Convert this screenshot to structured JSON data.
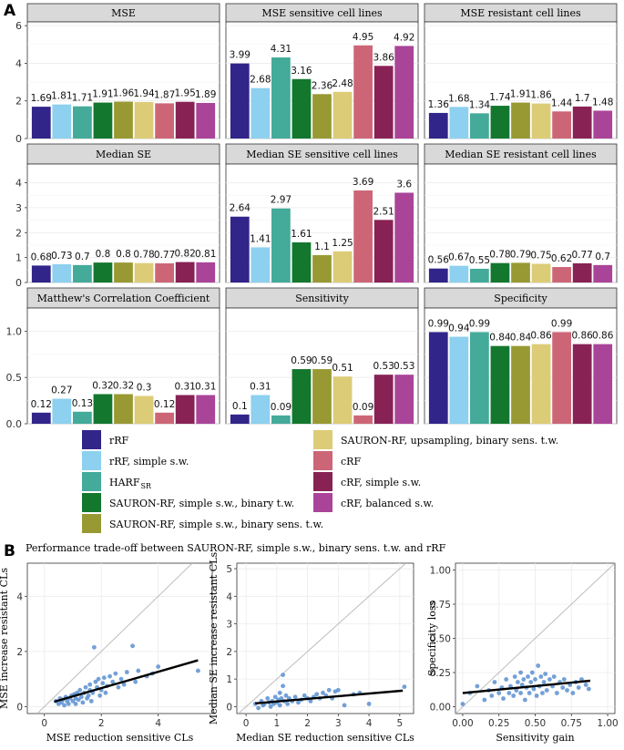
{
  "panel_a_label": "A",
  "panel_b_label": "B",
  "colors": [
    "#31258a",
    "#8dd0ef",
    "#44aa99",
    "#13772e",
    "#999934",
    "#ddcc77",
    "#cc6677",
    "#882255",
    "#aa4499"
  ],
  "legend": {
    "items": [
      "rRF",
      "rRF, simple s.w.",
      "HARF",
      "SAURON-RF, simple s.w., binary t.w.",
      "SAURON-RF, simple s.w., binary sens. t.w.",
      "SAURON-RF, upsampling, binary sens. t.w.",
      "cRF",
      "cRF, simple s.w.",
      "cRF, balanced s.w."
    ],
    "harf_subscript": "SR"
  },
  "chart_data": [
    {
      "type": "bar",
      "title": "MSE",
      "values": [
        1.69,
        1.81,
        1.71,
        1.91,
        1.96,
        1.94,
        1.87,
        1.95,
        1.89
      ],
      "labels": [
        "1.69",
        "1.81",
        "1.71",
        "1.91",
        "1.96",
        "1.94",
        "1.87",
        "1.95",
        "1.89"
      ],
      "ylim": [
        0,
        6.2
      ],
      "yticks": [
        0,
        2,
        4,
        6
      ],
      "ytick_labels": [
        "0",
        "2",
        "4",
        "6"
      ]
    },
    {
      "type": "bar",
      "title": "MSE sensitive cell lines",
      "values": [
        3.99,
        2.68,
        4.31,
        3.16,
        2.36,
        2.48,
        4.95,
        3.86,
        4.92
      ],
      "labels": [
        "3.99",
        "2.68",
        "4.31",
        "3.16",
        "2.36",
        "2.48",
        "4.95",
        "3.86",
        "4.92"
      ],
      "ylim": [
        0,
        6.2
      ]
    },
    {
      "type": "bar",
      "title": "MSE resistant cell lines",
      "values": [
        1.36,
        1.68,
        1.34,
        1.74,
        1.91,
        1.86,
        1.44,
        1.7,
        1.48
      ],
      "labels": [
        "1.36",
        "1.68",
        "1.34",
        "1.74",
        "1.91",
        "1.86",
        "1.44",
        "1.7",
        "1.48"
      ],
      "ylim": [
        0,
        6.2
      ]
    },
    {
      "type": "bar",
      "title": "Median SE",
      "values": [
        0.68,
        0.73,
        0.7,
        0.8,
        0.8,
        0.78,
        0.77,
        0.82,
        0.81
      ],
      "labels": [
        "0.68",
        "0.73",
        "0.7",
        "0.8",
        "0.8",
        "0.78",
        "0.77",
        "0.82",
        "0.81"
      ],
      "ylim": [
        0,
        4.75
      ],
      "yticks": [
        0,
        1,
        2,
        3,
        4
      ],
      "ytick_labels": [
        "0",
        "1",
        "2",
        "3",
        "4"
      ]
    },
    {
      "type": "bar",
      "title": "Median SE sensitive cell lines",
      "values": [
        2.64,
        1.41,
        2.97,
        1.61,
        1.1,
        1.25,
        3.69,
        2.51,
        3.6
      ],
      "labels": [
        "2.64",
        "1.41",
        "2.97",
        "1.61",
        "1.1",
        "1.25",
        "3.69",
        "2.51",
        "3.6"
      ],
      "ylim": [
        0,
        4.75
      ]
    },
    {
      "type": "bar",
      "title": "Median SE resistant cell lines",
      "values": [
        0.56,
        0.67,
        0.55,
        0.78,
        0.79,
        0.75,
        0.62,
        0.77,
        0.7
      ],
      "labels": [
        "0.56",
        "0.67",
        "0.55",
        "0.78",
        "0.79",
        "0.75",
        "0.62",
        "0.77",
        "0.7"
      ],
      "ylim": [
        0,
        4.75
      ]
    },
    {
      "type": "bar",
      "title": "Matthew's Correlation Coefficient",
      "values": [
        0.12,
        0.27,
        0.13,
        0.32,
        0.32,
        0.3,
        0.12,
        0.31,
        0.31
      ],
      "labels": [
        "0.12",
        "0.27",
        "0.13",
        "0.32",
        "0.32",
        "0.3",
        "0.12",
        "0.31",
        "0.31"
      ],
      "ylim": [
        0,
        1.25
      ],
      "yticks": [
        0,
        0.5,
        1.0
      ],
      "ytick_labels": [
        "0.0",
        "0.5",
        "1.0"
      ]
    },
    {
      "type": "bar",
      "title": "Sensitivity",
      "values": [
        0.1,
        0.31,
        0.09,
        0.59,
        0.59,
        0.51,
        0.09,
        0.53,
        0.53
      ],
      "labels": [
        "0.1",
        "0.31",
        "0.09",
        "0.59",
        "0.59",
        "0.51",
        "0.09",
        "0.53",
        "0.53"
      ],
      "ylim": [
        0,
        1.25
      ]
    },
    {
      "type": "bar",
      "title": "Specificity",
      "values": [
        0.99,
        0.94,
        0.99,
        0.84,
        0.84,
        0.86,
        0.99,
        0.86,
        0.86
      ],
      "labels": [
        "0.99",
        "0.94",
        "0.99",
        "0.84",
        "0.84",
        "0.86",
        "0.99",
        "0.86",
        "0.86"
      ],
      "ylim": [
        0,
        1.25
      ]
    },
    {
      "type": "scatter",
      "title": "Performance trade-off between SAURON-RF, simple s.w., binary sens. t.w. and rRF",
      "xlabel": "MSE reduction sensitive CLs",
      "ylabel": "MSE increase resistant CLs",
      "xlim": [
        -0.6,
        5.9
      ],
      "ylim": [
        -0.25,
        5.2
      ],
      "xticks": [
        0,
        2,
        4
      ],
      "yticks": [
        0,
        2,
        4
      ],
      "fit": [
        [
          0.35,
          0.18
        ],
        [
          5.4,
          1.68
        ]
      ],
      "points": [
        [
          0.4,
          0.2
        ],
        [
          0.5,
          0.1
        ],
        [
          0.55,
          0.3
        ],
        [
          0.6,
          0.15
        ],
        [
          0.65,
          0.25
        ],
        [
          0.7,
          0.05
        ],
        [
          0.75,
          0.35
        ],
        [
          0.8,
          0.2
        ],
        [
          0.85,
          0.1
        ],
        [
          0.9,
          0.3
        ],
        [
          0.95,
          0.4
        ],
        [
          1.0,
          0.2
        ],
        [
          1.05,
          0.45
        ],
        [
          1.1,
          0.3
        ],
        [
          1.1,
          0.1
        ],
        [
          1.15,
          0.5
        ],
        [
          1.2,
          0.25
        ],
        [
          1.25,
          0.6
        ],
        [
          1.3,
          0.35
        ],
        [
          1.35,
          0.15
        ],
        [
          1.4,
          0.5
        ],
        [
          1.45,
          0.7
        ],
        [
          1.5,
          0.3
        ],
        [
          1.55,
          0.4
        ],
        [
          1.6,
          0.8
        ],
        [
          1.6,
          0.6
        ],
        [
          1.65,
          0.2
        ],
        [
          1.7,
          0.5
        ],
        [
          1.75,
          2.15
        ],
        [
          1.8,
          0.9
        ],
        [
          1.85,
          0.7
        ],
        [
          1.9,
          1.0
        ],
        [
          1.95,
          0.4
        ],
        [
          2.0,
          0.6
        ],
        [
          2.05,
          0.85
        ],
        [
          2.1,
          1.05
        ],
        [
          2.15,
          0.5
        ],
        [
          2.2,
          0.75
        ],
        [
          2.3,
          1.1
        ],
        [
          2.4,
          0.9
        ],
        [
          2.5,
          1.2
        ],
        [
          2.6,
          0.7
        ],
        [
          2.7,
          1.0
        ],
        [
          2.8,
          0.8
        ],
        [
          2.9,
          1.25
        ],
        [
          3.1,
          2.2
        ],
        [
          3.2,
          0.9
        ],
        [
          3.3,
          1.3
        ],
        [
          3.6,
          1.1
        ],
        [
          3.8,
          1.2
        ],
        [
          4.0,
          1.45
        ],
        [
          5.4,
          1.3
        ]
      ]
    },
    {
      "type": "scatter",
      "xlabel": "Median SE reduction sensitive CLs",
      "ylabel": "Median SE increase resistant CLs",
      "xlim": [
        -0.3,
        5.45
      ],
      "ylim": [
        -0.25,
        5.2
      ],
      "xticks": [
        0,
        1,
        2,
        3,
        4,
        5
      ],
      "yticks": [
        0,
        1,
        2,
        3,
        4,
        5
      ],
      "fit": [
        [
          0.3,
          0.12
        ],
        [
          5.1,
          0.58
        ]
      ],
      "points": [
        [
          0.3,
          0.1
        ],
        [
          0.4,
          -0.05
        ],
        [
          0.5,
          0.2
        ],
        [
          0.55,
          0.05
        ],
        [
          0.6,
          0.1
        ],
        [
          0.7,
          0.3
        ],
        [
          0.75,
          0.15
        ],
        [
          0.8,
          0.0
        ],
        [
          0.85,
          0.2
        ],
        [
          0.9,
          0.1
        ],
        [
          0.95,
          0.35
        ],
        [
          1.0,
          0.15
        ],
        [
          1.05,
          0.25
        ],
        [
          1.1,
          0.5
        ],
        [
          1.1,
          0.05
        ],
        [
          1.15,
          0.3
        ],
        [
          1.2,
          0.75
        ],
        [
          1.2,
          1.15
        ],
        [
          1.25,
          0.2
        ],
        [
          1.3,
          0.4
        ],
        [
          1.35,
          0.1
        ],
        [
          1.4,
          0.3
        ],
        [
          1.5,
          0.2
        ],
        [
          1.6,
          0.35
        ],
        [
          1.7,
          0.15
        ],
        [
          1.8,
          0.25
        ],
        [
          1.9,
          0.4
        ],
        [
          2.0,
          0.3
        ],
        [
          2.1,
          0.2
        ],
        [
          2.2,
          0.35
        ],
        [
          2.3,
          0.45
        ],
        [
          2.4,
          0.3
        ],
        [
          2.5,
          0.5
        ],
        [
          2.6,
          0.4
        ],
        [
          2.7,
          0.6
        ],
        [
          2.8,
          0.3
        ],
        [
          2.9,
          0.55
        ],
        [
          3.0,
          0.6
        ],
        [
          3.2,
          0.05
        ],
        [
          3.5,
          0.45
        ],
        [
          3.7,
          0.5
        ],
        [
          4.0,
          0.1
        ],
        [
          5.15,
          0.72
        ]
      ]
    },
    {
      "type": "scatter",
      "xlabel": "Sensitivity gain",
      "ylabel": "Specificity loss",
      "xlim": [
        -0.05,
        1.05
      ],
      "ylim": [
        -0.05,
        1.05
      ],
      "xticks": [
        0,
        0.25,
        0.5,
        0.75,
        1.0
      ],
      "xtick_labels": [
        "0.00",
        "0.25",
        "0.50",
        "0.75",
        "1.00"
      ],
      "yticks": [
        0,
        0.25,
        0.5,
        0.75,
        1.0
      ],
      "ytick_labels": [
        "0.00",
        "0.25",
        "0.50",
        "0.75",
        "1.00"
      ],
      "fit": [
        [
          0.0,
          0.1
        ],
        [
          0.88,
          0.19
        ]
      ],
      "points": [
        [
          0.0,
          0.02
        ],
        [
          0.05,
          0.1
        ],
        [
          0.1,
          0.15
        ],
        [
          0.15,
          0.05
        ],
        [
          0.18,
          0.12
        ],
        [
          0.2,
          0.08
        ],
        [
          0.22,
          0.18
        ],
        [
          0.25,
          0.1
        ],
        [
          0.27,
          0.14
        ],
        [
          0.28,
          0.06
        ],
        [
          0.3,
          0.2
        ],
        [
          0.32,
          0.1
        ],
        [
          0.33,
          0.15
        ],
        [
          0.35,
          0.08
        ],
        [
          0.36,
          0.22
        ],
        [
          0.37,
          0.12
        ],
        [
          0.38,
          0.18
        ],
        [
          0.4,
          0.1
        ],
        [
          0.4,
          0.25
        ],
        [
          0.41,
          0.16
        ],
        [
          0.42,
          0.2
        ],
        [
          0.43,
          0.05
        ],
        [
          0.44,
          0.14
        ],
        [
          0.45,
          0.22
        ],
        [
          0.46,
          0.1
        ],
        [
          0.47,
          0.18
        ],
        [
          0.48,
          0.25
        ],
        [
          0.49,
          0.13
        ],
        [
          0.5,
          0.2
        ],
        [
          0.51,
          0.08
        ],
        [
          0.52,
          0.3
        ],
        [
          0.53,
          0.15
        ],
        [
          0.54,
          0.22
        ],
        [
          0.55,
          0.1
        ],
        [
          0.56,
          0.18
        ],
        [
          0.57,
          0.24
        ],
        [
          0.58,
          0.12
        ],
        [
          0.6,
          0.2
        ],
        [
          0.62,
          0.15
        ],
        [
          0.63,
          0.22
        ],
        [
          0.65,
          0.1
        ],
        [
          0.67,
          0.18
        ],
        [
          0.69,
          0.14
        ],
        [
          0.7,
          0.2
        ],
        [
          0.72,
          0.12
        ],
        [
          0.74,
          0.16
        ],
        [
          0.76,
          0.1
        ],
        [
          0.78,
          0.18
        ],
        [
          0.8,
          0.14
        ],
        [
          0.82,
          0.2
        ],
        [
          0.85,
          0.16
        ],
        [
          0.87,
          0.13
        ]
      ]
    }
  ]
}
